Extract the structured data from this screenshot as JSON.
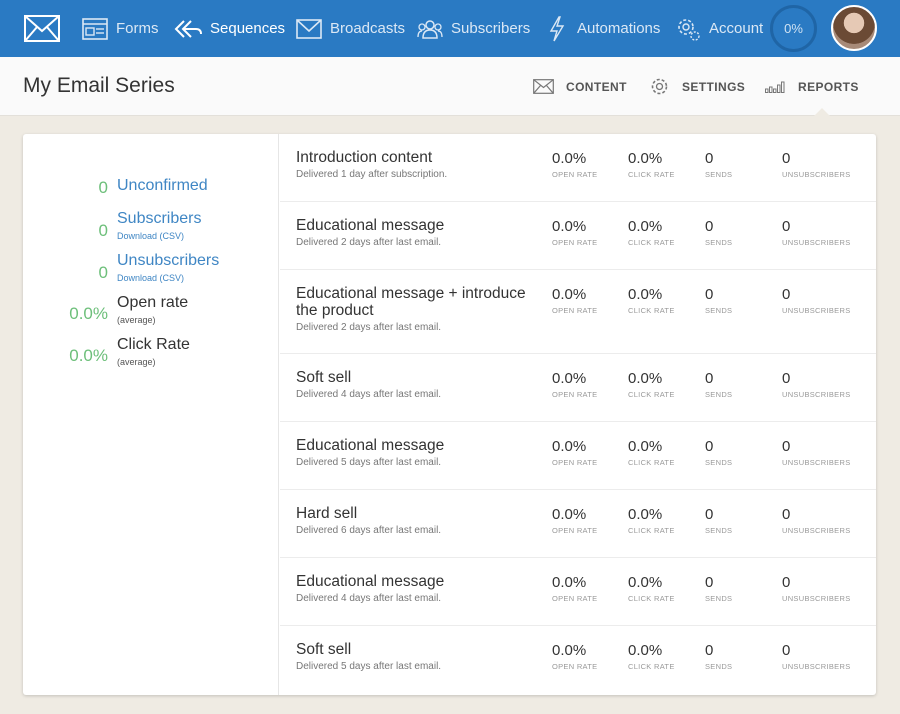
{
  "nav": {
    "items": [
      {
        "label": "Forms",
        "icon": "forms-icon"
      },
      {
        "label": "Sequences",
        "icon": "sequences-icon"
      },
      {
        "label": "Broadcasts",
        "icon": "broadcasts-icon"
      },
      {
        "label": "Subscribers",
        "icon": "subscribers-icon"
      },
      {
        "label": "Automations",
        "icon": "automations-icon"
      },
      {
        "label": "Account",
        "icon": "account-icon"
      }
    ],
    "progress": "0%",
    "progress_fraction": 0.0
  },
  "header": {
    "title": "My Email Series",
    "tabs": [
      {
        "label": "CONTENT",
        "icon": "envelope-icon"
      },
      {
        "label": "SETTINGS",
        "icon": "gear-icon"
      },
      {
        "label": "REPORTS",
        "icon": "bar-chart-icon"
      }
    ],
    "active_tab": "REPORTS"
  },
  "summary": {
    "unconfirmed": {
      "value": "0",
      "label": "Unconfirmed"
    },
    "subscribers": {
      "value": "0",
      "label": "Subscribers",
      "sub": "Download (CSV)"
    },
    "unsubscribers": {
      "value": "0",
      "label": "Unsubscribers",
      "sub": "Download (CSV)"
    },
    "open_rate": {
      "value": "0.0%",
      "label": "Open rate",
      "sub": "(average)"
    },
    "click_rate": {
      "value": "0.0%",
      "label": "Click Rate",
      "sub": "(average)"
    }
  },
  "metric_labels": {
    "open_rate": "OPEN RATE",
    "click_rate": "CLICK RATE",
    "sends": "SENDS",
    "unsubscribers": "UNSUBSCRIBERS"
  },
  "emails": [
    {
      "title": "Introduction content",
      "delivered": "Delivered 1 day after subscription.",
      "open_rate": "0.0%",
      "click_rate": "0.0%",
      "sends": "0",
      "unsubscribers": "0"
    },
    {
      "title": "Educational message",
      "delivered": "Delivered 2 days after last email.",
      "open_rate": "0.0%",
      "click_rate": "0.0%",
      "sends": "0",
      "unsubscribers": "0"
    },
    {
      "title": "Educational message + introduce the product",
      "delivered": "Delivered 2 days after last email.",
      "open_rate": "0.0%",
      "click_rate": "0.0%",
      "sends": "0",
      "unsubscribers": "0"
    },
    {
      "title": "Soft sell",
      "delivered": "Delivered 4 days after last email.",
      "open_rate": "0.0%",
      "click_rate": "0.0%",
      "sends": "0",
      "unsubscribers": "0"
    },
    {
      "title": "Educational message",
      "delivered": "Delivered 5 days after last email.",
      "open_rate": "0.0%",
      "click_rate": "0.0%",
      "sends": "0",
      "unsubscribers": "0"
    },
    {
      "title": "Hard sell",
      "delivered": "Delivered 6 days after last email.",
      "open_rate": "0.0%",
      "click_rate": "0.0%",
      "sends": "0",
      "unsubscribers": "0"
    },
    {
      "title": "Educational message",
      "delivered": "Delivered 4 days after last email.",
      "open_rate": "0.0%",
      "click_rate": "0.0%",
      "sends": "0",
      "unsubscribers": "0"
    },
    {
      "title": "Soft sell",
      "delivered": "Delivered 5 days after last email.",
      "open_rate": "0.0%",
      "click_rate": "0.0%",
      "sends": "0",
      "unsubscribers": "0"
    }
  ],
  "colors": {
    "nav_bg": "#2a7ac3",
    "link": "#3f86c4",
    "stat_green": "#6dbf7a",
    "page_bg": "#efebe3"
  }
}
